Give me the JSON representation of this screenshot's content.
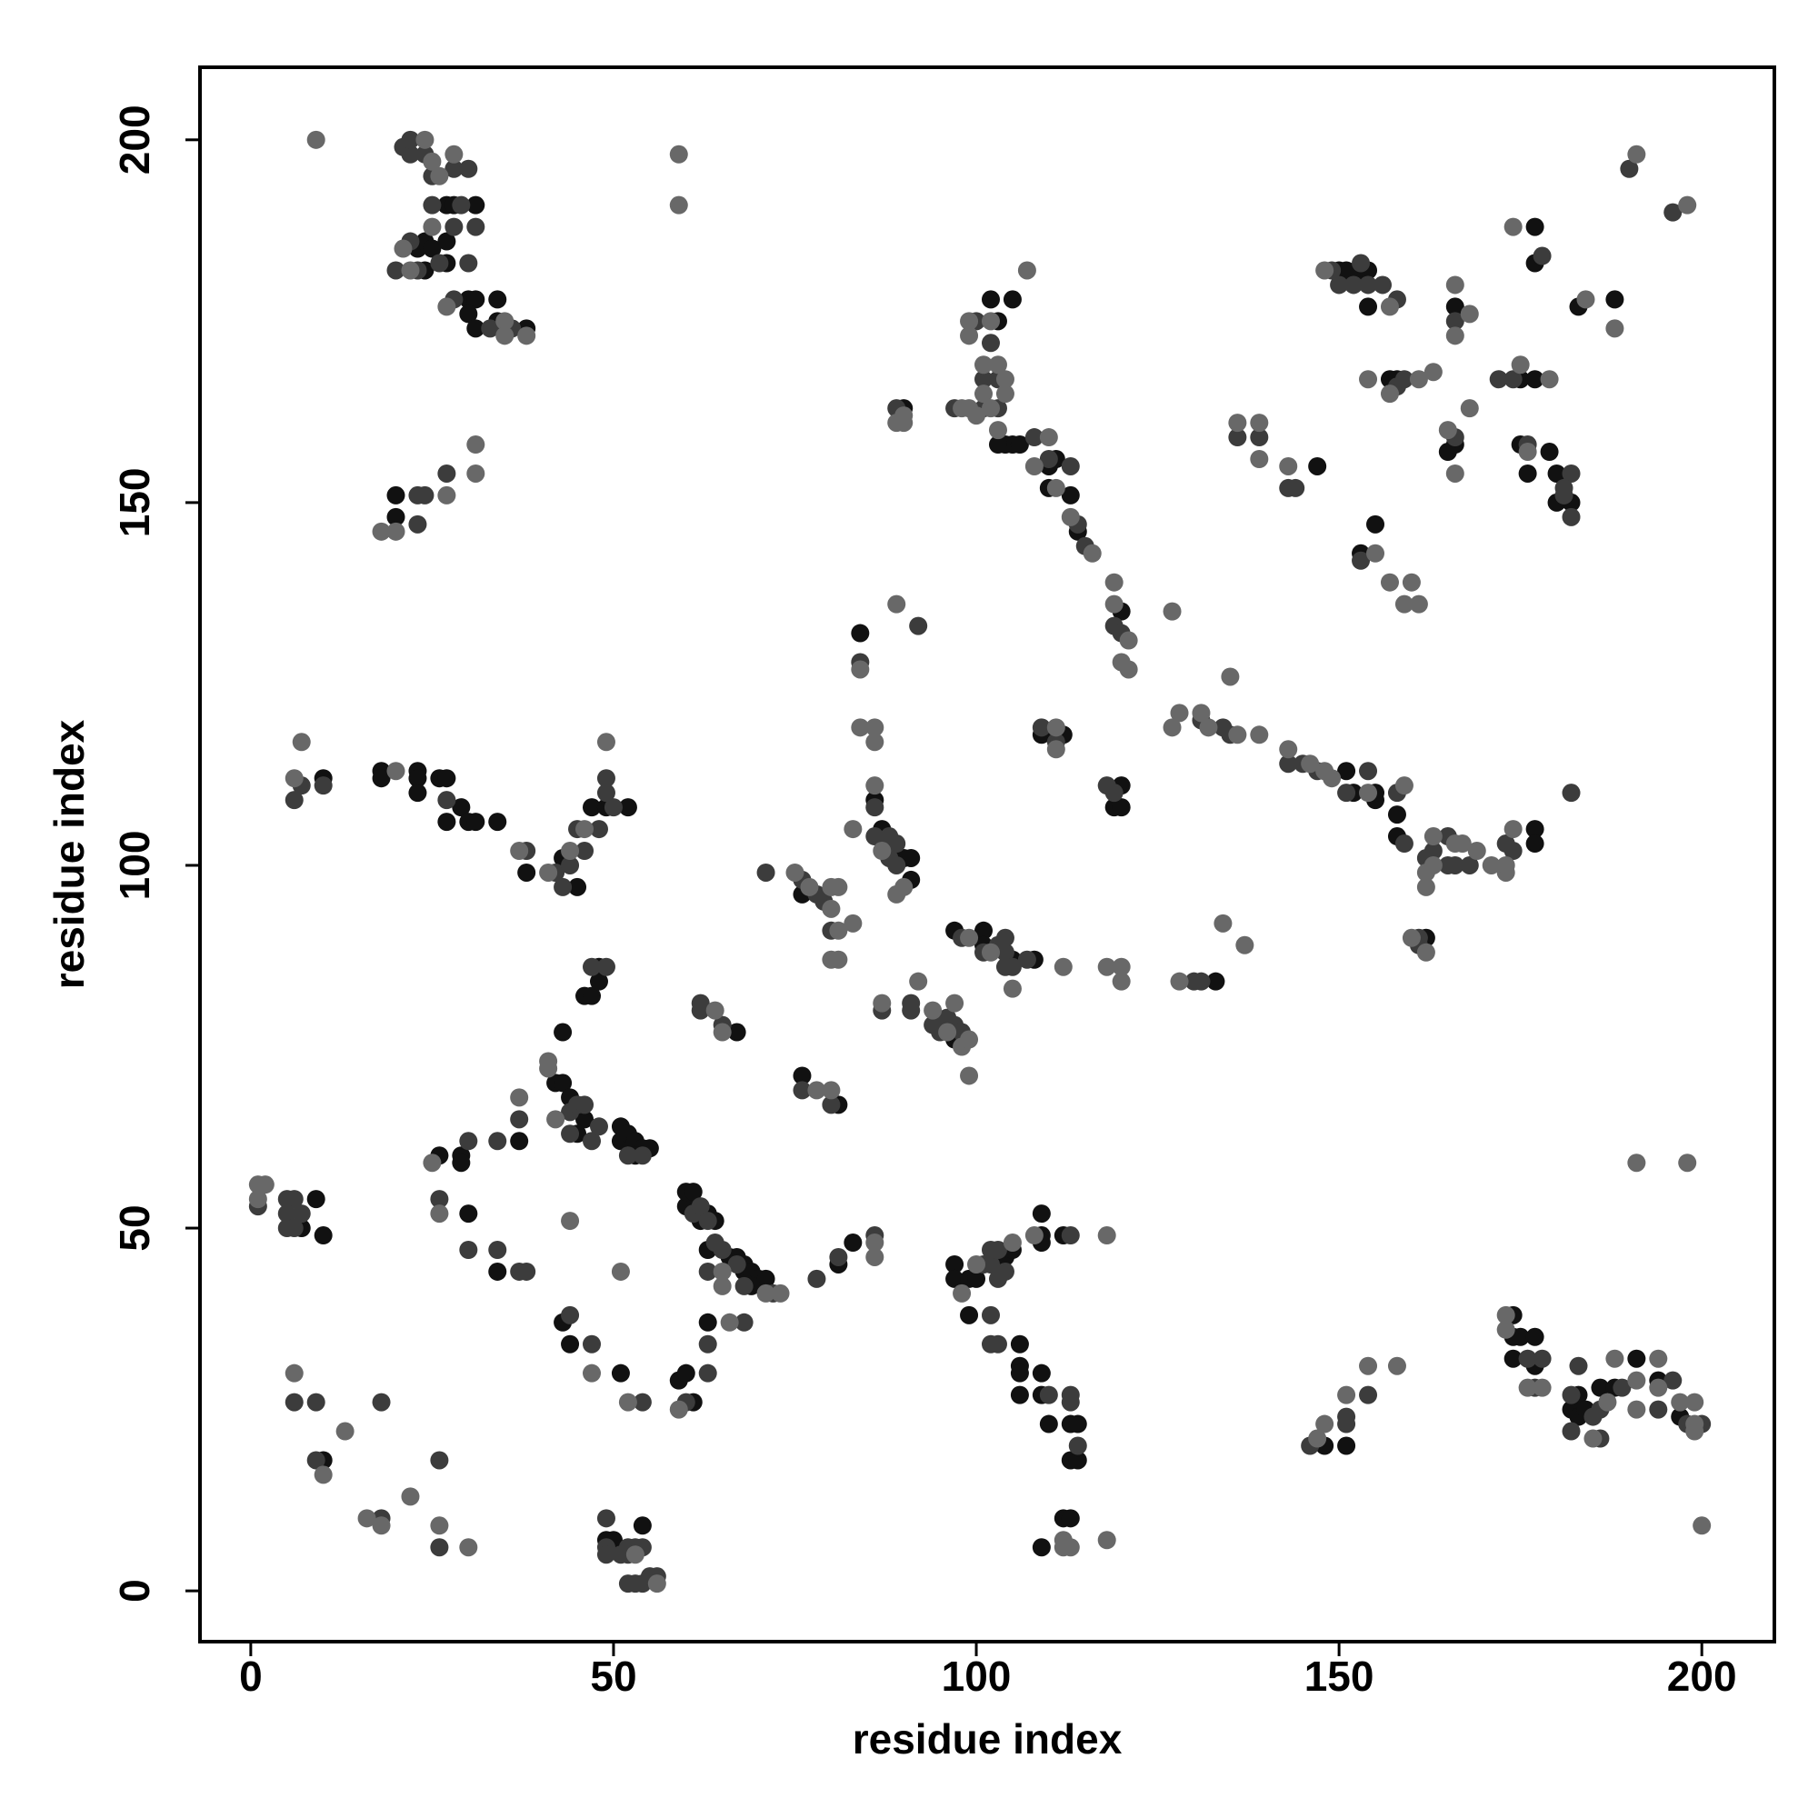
{
  "chart_data": {
    "type": "scatter",
    "x_label": "residue index",
    "y_label": "residue index",
    "xlim": [
      -7,
      210
    ],
    "ylim": [
      -7,
      210
    ],
    "xticks": [
      0,
      50,
      100,
      150,
      200
    ],
    "yticks": [
      0,
      50,
      100,
      150,
      200
    ],
    "series": [
      {
        "color": "#111111",
        "x": [
          23,
          24,
          25,
          24,
          27,
          28,
          31,
          27,
          27,
          30,
          31,
          30,
          31,
          34,
          34,
          38,
          20,
          20,
          10,
          18,
          18,
          23,
          23,
          23,
          26,
          27,
          29,
          27,
          30,
          31,
          34,
          38,
          43,
          45,
          47,
          49,
          52,
          48,
          46,
          47,
          48,
          43,
          42,
          43,
          44,
          46,
          45,
          51,
          51,
          52,
          53,
          54,
          55,
          53,
          37,
          29,
          29,
          26,
          30,
          7,
          9,
          10,
          34,
          10,
          49,
          50,
          54,
          43,
          44,
          51,
          60,
          60,
          61,
          62,
          63,
          64,
          63,
          66,
          67,
          68,
          68,
          69,
          70,
          71,
          69,
          81,
          83,
          63,
          59,
          60,
          61,
          76,
          86,
          87,
          90,
          91,
          91,
          84,
          67,
          76,
          81,
          97,
          97,
          101,
          101,
          105,
          108,
          133,
          97,
          97,
          99,
          100,
          104,
          105,
          109,
          109,
          109,
          112,
          99,
          106,
          106,
          106,
          106,
          109,
          109,
          110,
          113,
          114,
          113,
          114,
          112,
          113,
          109,
          102,
          105,
          103,
          90,
          104,
          105,
          103,
          106,
          110,
          111,
          110,
          113,
          114,
          120,
          109,
          112,
          120,
          119,
          120,
          151,
          152,
          155,
          155,
          158,
          158,
          177,
          177,
          162,
          147,
          150,
          151,
          151,
          153,
          154,
          154,
          157,
          158,
          166,
          165,
          166,
          177,
          177,
          175,
          177,
          175,
          176,
          179,
          180,
          180,
          182,
          183,
          188,
          153,
          155,
          174,
          174,
          175,
          174,
          177,
          177,
          182,
          183,
          183,
          184,
          186,
          188,
          191,
          194,
          197,
          148,
          151
        ],
        "y": [
          185,
          186,
          185,
          182,
          191,
          191,
          191,
          186,
          183,
          178,
          178,
          176,
          174,
          175,
          178,
          174,
          148,
          151,
          112,
          113,
          112,
          113,
          112,
          110,
          112,
          112,
          108,
          106,
          106,
          106,
          106,
          99,
          101,
          97,
          108,
          108,
          108,
          86,
          82,
          82,
          84,
          77,
          70,
          70,
          68,
          65,
          63,
          64,
          62,
          63,
          62,
          61,
          61,
          60,
          62,
          60,
          59,
          60,
          52,
          50,
          54,
          49,
          44,
          18,
          7,
          7,
          9,
          37,
          34,
          30,
          53,
          55,
          55,
          51,
          52,
          51,
          47,
          46,
          46,
          45,
          44,
          44,
          43,
          43,
          42,
          45,
          48,
          37,
          29,
          30,
          26,
          96,
          109,
          105,
          101,
          101,
          98,
          132,
          77,
          71,
          67,
          76,
          91,
          91,
          89,
          87,
          87,
          84,
          45,
          43,
          43,
          43,
          46,
          47,
          52,
          49,
          48,
          49,
          38,
          34,
          31,
          30,
          27,
          30,
          27,
          23,
          23,
          23,
          18,
          18,
          10,
          10,
          6,
          178,
          178,
          175,
          163,
          158,
          158,
          158,
          158,
          155,
          156,
          152,
          151,
          146,
          135,
          118,
          118,
          111,
          108,
          108,
          113,
          110,
          109,
          110,
          107,
          104,
          105,
          103,
          90,
          155,
          182,
          181,
          182,
          181,
          182,
          177,
          167,
          167,
          177,
          157,
          158,
          188,
          183,
          167,
          167,
          158,
          154,
          157,
          154,
          150,
          150,
          177,
          178,
          143,
          147,
          38,
          35,
          35,
          32,
          31,
          35,
          25,
          27,
          24,
          25,
          28,
          28,
          32,
          29,
          24,
          20,
          20
        ]
      },
      {
        "color": "#3c3c3c",
        "x": [
          21,
          22,
          22,
          24,
          25,
          28,
          30,
          22,
          20,
          23,
          25,
          28,
          29,
          31,
          26,
          30,
          28,
          33,
          36,
          23,
          23,
          24,
          27,
          7,
          6,
          10,
          27,
          38,
          42,
          43,
          44,
          46,
          45,
          48,
          50,
          49,
          49,
          47,
          49,
          44,
          45,
          46,
          44,
          47,
          48,
          52,
          54,
          37,
          34,
          30,
          26,
          1,
          5,
          6,
          5,
          5,
          6,
          7,
          30,
          34,
          37,
          38,
          6,
          9,
          9,
          18,
          18,
          26,
          26,
          49,
          49,
          49,
          51,
          52,
          52,
          53,
          54,
          53,
          54,
          55,
          56,
          52,
          44,
          47,
          54,
          61,
          62,
          63,
          64,
          65,
          67,
          72,
          68,
          63,
          78,
          81,
          86,
          68,
          63,
          60,
          63,
          71,
          76,
          78,
          79,
          80,
          86,
          86,
          88,
          89,
          88,
          89,
          84,
          92,
          62,
          62,
          65,
          76,
          80,
          87,
          91,
          91,
          94,
          95,
          96,
          97,
          98,
          98,
          101,
          103,
          104,
          104,
          105,
          104,
          107,
          130,
          131,
          101,
          102,
          102,
          103,
          104,
          103,
          113,
          102,
          102,
          103,
          110,
          113,
          113,
          114,
          100,
          102,
          101,
          103,
          103,
          101,
          97,
          89,
          108,
          110,
          113,
          114,
          115,
          119,
          120,
          109,
          111,
          118,
          119,
          131,
          134,
          135,
          143,
          145,
          147,
          151,
          154,
          158,
          159,
          163,
          162,
          165,
          165,
          166,
          168,
          173,
          174,
          182,
          161,
          161,
          136,
          139,
          143,
          144,
          149,
          150,
          152,
          153,
          154,
          156,
          158,
          158,
          159,
          166,
          166,
          178,
          172,
          174,
          176,
          181,
          182,
          182,
          181,
          190,
          196,
          153,
          176,
          178,
          177,
          182,
          183,
          182,
          185,
          186,
          186,
          189,
          194,
          196,
          198,
          200,
          146,
          151,
          151,
          154
        ],
        "y": [
          199,
          198,
          200,
          198,
          195,
          196,
          196,
          186,
          182,
          182,
          191,
          188,
          191,
          188,
          183,
          183,
          178,
          174,
          174,
          147,
          151,
          151,
          154,
          111,
          109,
          111,
          109,
          102,
          99,
          97,
          100,
          102,
          105,
          105,
          108,
          110,
          112,
          86,
          86,
          66,
          67,
          67,
          63,
          62,
          64,
          60,
          60,
          65,
          62,
          62,
          54,
          53,
          54,
          54,
          52,
          50,
          50,
          52,
          47,
          47,
          44,
          44,
          26,
          26,
          18,
          10,
          26,
          18,
          6,
          10,
          6,
          5,
          5,
          6,
          5,
          6,
          6,
          1,
          1,
          2,
          2,
          1,
          38,
          34,
          26,
          52,
          53,
          51,
          48,
          47,
          45,
          41,
          42,
          44,
          43,
          46,
          49,
          37,
          34,
          26,
          30,
          99,
          98,
          96,
          95,
          91,
          108,
          104,
          104,
          103,
          101,
          100,
          128,
          133,
          81,
          80,
          78,
          69,
          67,
          80,
          81,
          80,
          78,
          77,
          79,
          78,
          77,
          90,
          88,
          89,
          90,
          88,
          86,
          86,
          87,
          84,
          84,
          45,
          45,
          47,
          47,
          44,
          43,
          49,
          38,
          34,
          34,
          27,
          27,
          26,
          20,
          175,
          172,
          167,
          167,
          163,
          163,
          163,
          163,
          159,
          156,
          155,
          147,
          144,
          133,
          132,
          119,
          117,
          111,
          110,
          120,
          119,
          118,
          114,
          114,
          113,
          110,
          113,
          110,
          103,
          102,
          101,
          100,
          104,
          100,
          100,
          103,
          102,
          110,
          89,
          90,
          159,
          159,
          152,
          152,
          182,
          180,
          180,
          183,
          180,
          180,
          178,
          166,
          167,
          175,
          159,
          184,
          167,
          167,
          158,
          151,
          154,
          148,
          152,
          196,
          190,
          142,
          32,
          32,
          28,
          27,
          31,
          22,
          24,
          25,
          21,
          28,
          25,
          29,
          23,
          23,
          20,
          23,
          24,
          27
        ]
      },
      {
        "color": "#686868",
        "x": [
          9,
          24,
          25,
          26,
          28,
          21,
          22,
          25,
          27,
          35,
          35,
          38,
          59,
          59,
          18,
          20,
          27,
          31,
          31,
          7,
          6,
          20,
          37,
          41,
          44,
          46,
          49,
          41,
          41,
          42,
          37,
          25,
          26,
          1,
          2,
          1,
          44,
          6,
          10,
          13,
          16,
          18,
          22,
          26,
          30,
          53,
          56,
          47,
          52,
          51,
          71,
          73,
          65,
          65,
          86,
          86,
          66,
          59,
          75,
          77,
          80,
          81,
          80,
          81,
          80,
          81,
          83,
          83,
          86,
          87,
          90,
          89,
          84,
          84,
          86,
          86,
          89,
          64,
          65,
          78,
          80,
          87,
          92,
          94,
          96,
          97,
          98,
          99,
          99,
          99,
          102,
          105,
          112,
          118,
          120,
          120,
          128,
          134,
          137,
          98,
          105,
          100,
          108,
          118,
          112,
          112,
          113,
          118,
          107,
          99,
          99,
          102,
          101,
          103,
          101,
          104,
          104,
          102,
          98,
          99,
          100,
          90,
          89,
          90,
          103,
          110,
          108,
          111,
          113,
          116,
          119,
          119,
          121,
          120,
          121,
          111,
          111,
          127,
          127,
          128,
          131,
          132,
          135,
          136,
          139,
          143,
          146,
          148,
          149,
          154,
          159,
          163,
          162,
          162,
          163,
          166,
          167,
          169,
          171,
          173,
          173,
          174,
          160,
          162,
          136,
          139,
          139,
          143,
          148,
          157,
          154,
          157,
          161,
          163,
          166,
          166,
          168,
          165,
          166,
          168,
          174,
          175,
          179,
          176,
          184,
          188,
          191,
          198,
          155,
          157,
          159,
          160,
          161,
          173,
          173,
          176,
          178,
          185,
          187,
          188,
          191,
          191,
          194,
          194,
          197,
          199,
          199,
          199,
          200,
          191,
          198,
          147,
          148,
          151,
          154,
          158
        ],
        "y": [
          200,
          200,
          197,
          195,
          198,
          185,
          182,
          188,
          177,
          175,
          173,
          173,
          198,
          191,
          146,
          146,
          151,
          154,
          158,
          117,
          112,
          113,
          102,
          99,
          102,
          105,
          117,
          73,
          72,
          65,
          68,
          59,
          52,
          56,
          56,
          54,
          51,
          30,
          16,
          22,
          10,
          9,
          13,
          9,
          6,
          5,
          1,
          30,
          26,
          44,
          41,
          41,
          44,
          42,
          48,
          46,
          37,
          25,
          99,
          97,
          97,
          97,
          94,
          91,
          87,
          87,
          92,
          105,
          111,
          102,
          97,
          96,
          127,
          119,
          119,
          117,
          136,
          80,
          77,
          69,
          69,
          81,
          84,
          80,
          77,
          81,
          75,
          76,
          71,
          90,
          88,
          83,
          86,
          86,
          86,
          84,
          84,
          92,
          89,
          41,
          48,
          45,
          49,
          49,
          7,
          6,
          6,
          7,
          182,
          175,
          173,
          175,
          169,
          169,
          165,
          167,
          165,
          163,
          163,
          163,
          162,
          162,
          161,
          161,
          160,
          159,
          155,
          152,
          148,
          143,
          139,
          136,
          131,
          128,
          127,
          119,
          116,
          135,
          119,
          121,
          121,
          119,
          126,
          118,
          118,
          116,
          114,
          113,
          112,
          110,
          111,
          104,
          99,
          97,
          100,
          103,
          103,
          102,
          100,
          99,
          100,
          105,
          90,
          88,
          161,
          161,
          156,
          155,
          182,
          177,
          167,
          165,
          167,
          168,
          180,
          173,
          176,
          160,
          154,
          163,
          188,
          169,
          167,
          157,
          178,
          174,
          198,
          191,
          143,
          139,
          136,
          139,
          136,
          38,
          36,
          28,
          28,
          21,
          26,
          32,
          29,
          25,
          32,
          28,
          26,
          26,
          23,
          22,
          9,
          59,
          59,
          21,
          23,
          27,
          31,
          31
        ]
      }
    ]
  }
}
